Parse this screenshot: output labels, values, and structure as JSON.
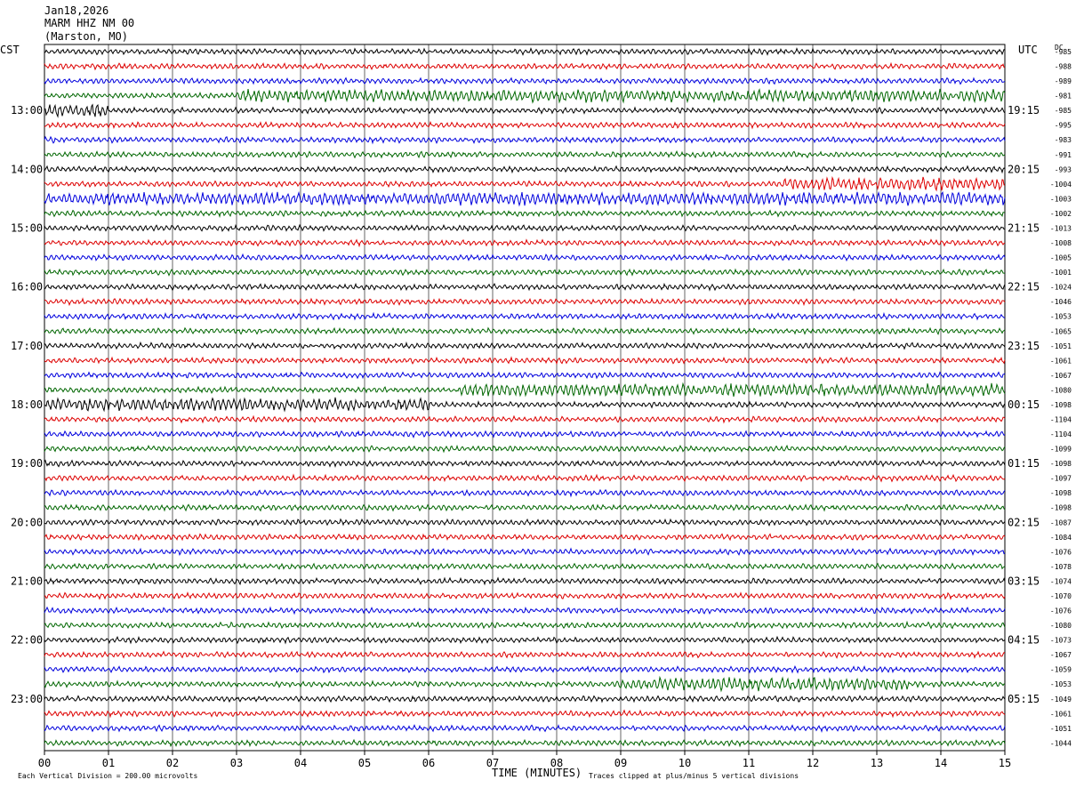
{
  "header": {
    "date": "Jan18,2026",
    "station": "MARM HHZ NM 00",
    "location": "(Marston, MO)"
  },
  "chart_data": {
    "type": "line",
    "left_timezone": "CST",
    "right_timezone": "UTC",
    "dc_label": "DC",
    "xlabel": "TIME (MINUTES)",
    "x_ticks": [
      "00",
      "01",
      "02",
      "03",
      "04",
      "05",
      "06",
      "07",
      "08",
      "09",
      "10",
      "11",
      "12",
      "13",
      "14",
      "15"
    ],
    "xlim": [
      0,
      15
    ],
    "left_hour_labels": [
      "13:00",
      "14:00",
      "15:00",
      "16:00",
      "17:00",
      "18:00",
      "19:00",
      "20:00",
      "21:00",
      "22:00",
      "23:00"
    ],
    "right_hour_labels": [
      "19:15",
      "20:15",
      "21:15",
      "22:15",
      "23:15",
      "00:15",
      "01:15",
      "02:15",
      "03:15",
      "04:15",
      "05:15"
    ],
    "trace_colors": [
      "#000000",
      "#dd0000",
      "#0000dd",
      "#006600"
    ],
    "dc_offsets": [
      "-985",
      "-988",
      "-989",
      "-981",
      "-985",
      "-995",
      "-983",
      "-991",
      "-993",
      "-1004",
      "-1003",
      "-1002",
      "-1013",
      "-1008",
      "-1005",
      "-1001",
      "-1024",
      "-1046",
      "-1053",
      "-1065",
      "-1051",
      "-1061",
      "-1067",
      "-1080",
      "-1098",
      "-1104",
      "-1104",
      "-1099",
      "-1098",
      "-1097",
      "-1098",
      "-1098",
      "-1087",
      "-1084",
      "-1076",
      "-1078",
      "-1074",
      "-1070",
      "-1076",
      "-1080",
      "-1073",
      "-1067",
      "-1059",
      "-1053",
      "-1049",
      "-1061",
      "-1051",
      "-1044"
    ],
    "noisy_segments": [
      {
        "trace": 3,
        "x_start": 3.0,
        "x_end": 15.0
      },
      {
        "trace": 4,
        "x_start": 0.0,
        "x_end": 1.0
      },
      {
        "trace": 9,
        "x_start": 11.5,
        "x_end": 15.0
      },
      {
        "trace": 10,
        "x_start": 0.0,
        "x_end": 15.0
      },
      {
        "trace": 23,
        "x_start": 6.5,
        "x_end": 15.0
      },
      {
        "trace": 24,
        "x_start": 0.0,
        "x_end": 6.0
      },
      {
        "trace": 43,
        "x_start": 9.0,
        "x_end": 13.5
      }
    ],
    "footer_left": "Each Vertical Division =  200.00 microvolts",
    "footer_right": "Traces clipped at plus/minus 5 vertical divisions"
  }
}
